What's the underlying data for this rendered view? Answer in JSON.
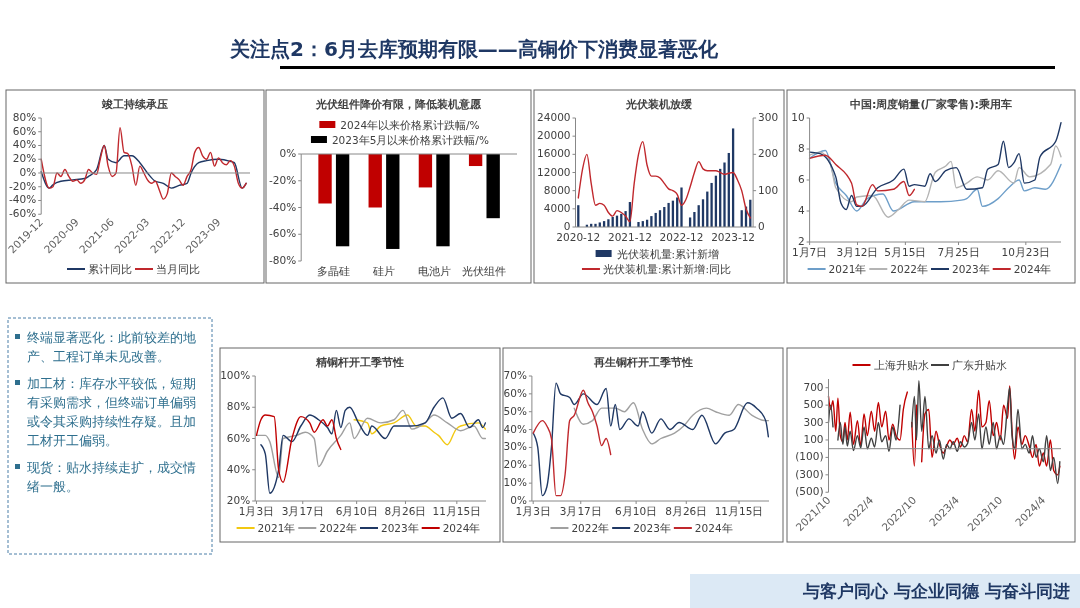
{
  "chart_data": [
    {
      "type": "line",
      "title": "竣工持续承压",
      "xlim": [
        "2019-12",
        "2024-05"
      ],
      "xticks": [
        {
          "value": "2019-12",
          "label": "2019-12"
        },
        {
          "value": "2020-09",
          "label": "2020-09"
        },
        {
          "value": "2021-06",
          "label": "2021-06"
        },
        {
          "value": "2022-03",
          "label": "2022-03"
        },
        {
          "value": "2022-12",
          "label": "2022-12"
        },
        {
          "value": "2023-09",
          "label": "2023-09"
        }
      ],
      "ylim": [
        -60,
        80
      ],
      "yticks": [
        {
          "value": -60,
          "label": "-60%"
        },
        {
          "value": -40,
          "label": "-40%"
        },
        {
          "value": -20,
          "label": "-20%"
        },
        {
          "value": 0,
          "label": "0%"
        },
        {
          "value": 20,
          "label": "20%"
        },
        {
          "value": 40,
          "label": "40%"
        },
        {
          "value": 60,
          "label": "60%"
        },
        {
          "value": 80,
          "label": "80%"
        }
      ],
      "legend": "bottom",
      "series": [
        {
          "name": "累计同比",
          "color": "#1f3864",
          "x": [
            "2019-12",
            "2020-02",
            "2020-03",
            "2020-05",
            "2020-08",
            "2020-11",
            "2020-12",
            "2021-02",
            "2021-04",
            "2021-05",
            "2021-07",
            "2021-09",
            "2021-11",
            "2022-01",
            "2022-03",
            "2022-05",
            "2022-07",
            "2022-09",
            "2022-11",
            "2023-01",
            "2023-02",
            "2023-04",
            "2023-06",
            "2023-09",
            "2023-12",
            "2024-01",
            "2024-03",
            "2024-04"
          ],
          "values": [
            2,
            -22,
            -17,
            -12,
            -10,
            -8,
            -5,
            5,
            40,
            20,
            15,
            25,
            25,
            15,
            0,
            -12,
            -15,
            -22,
            -18,
            -15,
            0,
            15,
            18,
            20,
            17,
            15,
            -22,
            -15
          ]
        },
        {
          "name": "当月同比",
          "color": "#c0282d",
          "x": [
            "2019-12",
            "2020-02",
            "2020-03",
            "2020-04",
            "2020-05",
            "2020-06",
            "2020-07",
            "2020-08",
            "2020-09",
            "2020-10",
            "2020-11",
            "2020-12",
            "2021-01",
            "2021-02",
            "2021-03",
            "2021-04",
            "2021-05",
            "2021-06",
            "2021-07",
            "2021-08",
            "2021-09",
            "2021-10",
            "2021-11",
            "2021-12",
            "2022-01",
            "2022-02",
            "2022-03",
            "2022-04",
            "2022-05",
            "2022-06",
            "2022-07",
            "2022-08",
            "2022-09",
            "2022-10",
            "2022-11",
            "2022-12",
            "2023-01",
            "2023-02",
            "2023-03",
            "2023-04",
            "2023-05",
            "2023-06",
            "2023-07",
            "2023-08",
            "2023-09",
            "2023-10",
            "2023-11",
            "2023-12",
            "2024-01",
            "2024-02",
            "2024-03",
            "2024-04"
          ],
          "values": [
            20,
            -22,
            -20,
            0,
            -5,
            5,
            -5,
            -12,
            -10,
            -15,
            -10,
            5,
            0,
            -2,
            20,
            40,
            10,
            -5,
            0,
            66,
            30,
            28,
            10,
            -18,
            10,
            0,
            -10,
            -15,
            -12,
            -25,
            -38,
            -30,
            0,
            -5,
            -10,
            -18,
            -5,
            5,
            30,
            37,
            25,
            20,
            30,
            10,
            22,
            15,
            12,
            18,
            10,
            -15,
            -22,
            -15
          ]
        }
      ]
    },
    {
      "type": "bar",
      "title": "光伏组件降价有限，降低装机意愿",
      "categories": [
        "多晶硅",
        "硅片",
        "电池片",
        "光伏组件"
      ],
      "ylim": [
        -80,
        0
      ],
      "yticks": [
        {
          "value": -80,
          "label": "-80%"
        },
        {
          "value": -60,
          "label": "-60%"
        },
        {
          "value": -40,
          "label": "-40%"
        },
        {
          "value": -20,
          "label": "-20%"
        },
        {
          "value": 0,
          "label": "0%"
        }
      ],
      "legend": "top",
      "series": [
        {
          "name": "2024年以来价格累计跌幅/%",
          "color": "#c00000",
          "values": [
            -37,
            -40,
            -25,
            -9
          ]
        },
        {
          "name": "2023年5月以来价格累计跌幅/%",
          "color": "#000000",
          "values": [
            -69,
            -71,
            -69,
            -48
          ]
        }
      ]
    },
    {
      "type": "bar",
      "title": "光伏装机放缓",
      "categories": [
        "2020-12",
        null,
        null,
        null,
        null,
        null,
        null,
        null,
        null,
        null,
        null,
        null,
        "2021-12",
        null,
        null,
        null,
        null,
        null,
        null,
        null,
        null,
        null,
        null,
        null,
        "2022-12",
        null,
        null,
        null,
        null,
        null,
        null,
        null,
        null,
        null,
        null,
        null,
        "2023-12",
        null,
        null,
        null,
        null
      ],
      "ylim": [
        0,
        24000
      ],
      "yticks": [
        0,
        4000,
        8000,
        12000,
        16000,
        20000,
        24000
      ],
      "y2lim": [
        0,
        300
      ],
      "y2ticks": [
        0,
        100,
        200,
        300
      ],
      "legend": "bottom",
      "series": [
        {
          "name": "光伏装机量:累计新增",
          "color": "#1f3864",
          "type": "bar",
          "values": [
            4800,
            null,
            500,
            700,
            700,
            1000,
            1300,
            1700,
            2200,
            2500,
            2900,
            3500,
            5500,
            null,
            1100,
            1300,
            1600,
            2400,
            3100,
            3700,
            4400,
            5300,
            5800,
            6500,
            8700,
            null,
            2100,
            3300,
            4800,
            6100,
            7800,
            9700,
            11300,
            12800,
            14200,
            16300,
            21700,
            null,
            3700,
            4500,
            6000
          ]
        },
        {
          "name": "光伏装机量:累计新增:同比",
          "color": "#c0282d",
          "type": "line",
          "axis": "y2",
          "values": [
            80,
            160,
            200,
            120,
            60,
            65,
            60,
            40,
            30,
            45,
            40,
            30,
            15,
            120,
            200,
            235,
            170,
            140,
            140,
            135,
            120,
            105,
            100,
            90,
            60,
            75,
            110,
            150,
            180,
            160,
            155,
            155,
            155,
            150,
            145,
            148,
            150,
            130,
            100,
            50,
            25
          ]
        }
      ]
    },
    {
      "type": "line",
      "title": "中国:周度销量(厂家零售):乘用车",
      "xlim": [
        "--01-07",
        "--12-09"
      ],
      "xticks": [
        {
          "value": "--01-07",
          "label": "1月7日"
        },
        {
          "value": "--03-12",
          "label": "3月12日"
        },
        {
          "value": "--05-15",
          "label": "5月15日"
        },
        {
          "value": "--07-25",
          "label": "7月25日"
        },
        {
          "value": "--10-23",
          "label": "10月23日"
        }
      ],
      "ylim": [
        2,
        10
      ],
      "yticks": [
        2,
        4,
        6,
        8,
        10
      ],
      "legend": "bottom",
      "series": [
        {
          "name": "2021年",
          "color": "#6d9ec9",
          "x": [
            "--01-07",
            "--01-28",
            "--02-11",
            "--02-25",
            "--03-11",
            "--03-25",
            "--04-15",
            "--04-29",
            "--05-27",
            "--07-01",
            "--07-29",
            "--08-05",
            "--08-19",
            "--08-26",
            "--09-16",
            "--09-30",
            "--10-14",
            "--10-21",
            "--11-04",
            "--11-18",
            "--12-09"
          ],
          "values": [
            7.4,
            7.9,
            5.8,
            5.0,
            4.0,
            4.8,
            5.1,
            4.0,
            4.6,
            4.6,
            4.7,
            4.8,
            5.4,
            4.3,
            4.8,
            5.5,
            6.0,
            5.3,
            5.5,
            5.4,
            7.0
          ]
        },
        {
          "name": "2022年",
          "color": "#b4b4b4",
          "x": [
            "--01-07",
            "--01-21",
            "--02-04",
            "--02-11",
            "--03-04",
            "--03-11",
            "--04-01",
            "--04-22",
            "--05-06",
            "--05-20",
            "--06-10",
            "--06-24",
            "--07-08",
            "--07-15",
            "--07-22",
            "--08-05",
            "--08-19",
            "--09-02",
            "--09-16",
            "--10-07",
            "--10-14",
            "--10-28",
            "--11-25",
            "--12-02",
            "--12-09"
          ],
          "values": [
            7.6,
            7.8,
            7.0,
            5.5,
            4.6,
            4.9,
            5.0,
            3.6,
            4.1,
            4.7,
            4.6,
            6.5,
            6.9,
            7.2,
            5.5,
            5.8,
            6.2,
            6.0,
            6.6,
            5.8,
            6.8,
            6.2,
            7.0,
            8.2,
            7.5
          ]
        },
        {
          "name": "2023年",
          "color": "#1f3864",
          "x": [
            "--01-07",
            "--01-21",
            "--02-11",
            "--02-18",
            "--02-25",
            "--03-04",
            "--03-11",
            "--03-18",
            "--04-08",
            "--04-29",
            "--05-13",
            "--05-20",
            "--05-27",
            "--06-10",
            "--06-17",
            "--06-24",
            "--07-08",
            "--07-22",
            "--08-05",
            "--08-26",
            "--09-02",
            "--09-16",
            "--09-23",
            "--09-30",
            "--10-07",
            "--10-14",
            "--10-21",
            "--11-04",
            "--11-11",
            "--12-02",
            "--12-09"
          ],
          "values": [
            7.8,
            7.7,
            6.2,
            4.5,
            4.1,
            5.0,
            4.3,
            4.3,
            5.5,
            6.0,
            6.7,
            5.6,
            5.7,
            5.6,
            6.4,
            5.9,
            6.6,
            6.8,
            5.4,
            5.5,
            6.7,
            7.0,
            8.5,
            6.8,
            7.1,
            7.7,
            5.8,
            6.0,
            7.5,
            8.5,
            9.7
          ]
        },
        {
          "name": "2024年",
          "color": "#c0282d",
          "x": [
            "--01-07",
            "--01-28",
            "--02-11",
            "--03-04",
            "--03-11",
            "--03-18",
            "--04-01",
            "--04-08",
            "--04-29",
            "--05-13",
            "--05-20",
            "--05-27"
          ],
          "values": [
            7.4,
            7.6,
            7.0,
            5.8,
            4.4,
            4.3,
            5.7,
            5.3,
            5.4,
            5.9,
            5.0,
            5.4
          ]
        }
      ]
    },
    {
      "type": "line",
      "title": "精铜杆开工季节性",
      "xlim": [
        "--01-01",
        "--12-31"
      ],
      "xticks": [
        {
          "value": "--01-03",
          "label": "1月3日"
        },
        {
          "value": "--03-17",
          "label": "3月17日"
        },
        {
          "value": "--06-10",
          "label": "6月10日"
        },
        {
          "value": "--08-26",
          "label": "8月26日"
        },
        {
          "value": "--11-15",
          "label": "11月15日"
        }
      ],
      "ylim": [
        20,
        100
      ],
      "yticks": [
        {
          "value": 20,
          "label": "20%"
        },
        {
          "value": 40,
          "label": "40%"
        },
        {
          "value": 60,
          "label": "60%"
        },
        {
          "value": 80,
          "label": "80%"
        },
        {
          "value": 100,
          "label": "100%"
        }
      ],
      "legend": "bottom",
      "series": [
        {
          "name": "2021年",
          "color": "#f2c811",
          "x": [
            "--06-06",
            "--06-27",
            "--07-04",
            "--07-18",
            "--08-08",
            "--08-29",
            "--09-12",
            "--09-26",
            "--10-10",
            "--10-17",
            "--10-31",
            "--11-14",
            "--11-21",
            "--12-19",
            "--12-30"
          ],
          "values": [
            72,
            70,
            63,
            68,
            70,
            75,
            68,
            68,
            64,
            62,
            56,
            66,
            68,
            70,
            66
          ]
        },
        {
          "name": "2022年",
          "color": "#a0a0a0",
          "x": [
            "--01-03",
            "--01-17",
            "--01-24",
            "--02-07",
            "--02-14",
            "--03-07",
            "--03-21",
            "--04-04",
            "--04-11",
            "--04-25",
            "--05-16",
            "--05-30",
            "--06-06",
            "--06-27",
            "--07-18",
            "--08-08",
            "--08-22",
            "--09-05",
            "--09-26",
            "--10-10",
            "--10-31",
            "--11-21",
            "--12-12",
            "--12-26",
            "--12-30"
          ],
          "values": [
            62,
            62,
            58,
            35,
            60,
            62,
            64,
            60,
            42,
            52,
            62,
            70,
            60,
            73,
            70,
            72,
            78,
            66,
            70,
            75,
            70,
            65,
            68,
            60,
            60
          ]
        },
        {
          "name": "2023年",
          "color": "#1f3864",
          "x": [
            "--01-10",
            "--01-17",
            "--01-24",
            "--02-07",
            "--02-14",
            "--02-28",
            "--03-14",
            "--03-28",
            "--04-11",
            "--04-25",
            "--05-02",
            "--05-09",
            "--05-16",
            "--05-23",
            "--05-30",
            "--06-13",
            "--06-27",
            "--07-04",
            "--07-25",
            "--08-08",
            "--09-05",
            "--09-26",
            "--10-10",
            "--10-24",
            "--11-07",
            "--11-21",
            "--12-05",
            "--12-19",
            "--12-26",
            "--12-30"
          ],
          "values": [
            56,
            50,
            25,
            40,
            62,
            58,
            68,
            75,
            72,
            67,
            63,
            78,
            67,
            78,
            80,
            70,
            62,
            68,
            60,
            68,
            68,
            70,
            80,
            86,
            73,
            76,
            67,
            72,
            67,
            70
          ]
        },
        {
          "name": "2024年",
          "color": "#c00000",
          "x": [
            "--01-03",
            "--01-10",
            "--01-17",
            "--01-31",
            "--02-07",
            "--02-14",
            "--02-28",
            "--03-14",
            "--03-28",
            "--04-04",
            "--04-18",
            "--04-25",
            "--05-02",
            "--05-09",
            "--05-16"
          ],
          "values": [
            62,
            72,
            75,
            74,
            40,
            32,
            60,
            74,
            70,
            64,
            72,
            68,
            72,
            60,
            53
          ]
        }
      ]
    },
    {
      "type": "line",
      "title": "再生铜杆开工季节性",
      "xlim": [
        "--01-01",
        "--12-31"
      ],
      "xticks": [
        {
          "value": "--01-03",
          "label": "1月3日"
        },
        {
          "value": "--03-17",
          "label": "3月17日"
        },
        {
          "value": "--06-10",
          "label": "6月10日"
        },
        {
          "value": "--08-26",
          "label": "8月26日"
        },
        {
          "value": "--11-15",
          "label": "11月15日"
        }
      ],
      "ylim": [
        0,
        70
      ],
      "yticks": [
        {
          "value": 0,
          "label": "0%"
        },
        {
          "value": 10,
          "label": "10%"
        },
        {
          "value": 20,
          "label": "20%"
        },
        {
          "value": 30,
          "label": "30%"
        },
        {
          "value": 40,
          "label": "40%"
        },
        {
          "value": 50,
          "label": "50%"
        },
        {
          "value": 60,
          "label": "60%"
        },
        {
          "value": 70,
          "label": "70%"
        }
      ],
      "legend": "bottom",
      "series": [
        {
          "name": "2022年",
          "color": "#a0a0a0",
          "x": [
            "--03-07",
            "--03-21",
            "--04-04",
            "--04-18",
            "--05-09",
            "--05-23",
            "--06-06",
            "--06-20",
            "--07-04",
            "--07-18",
            "--08-08",
            "--08-22",
            "--09-05",
            "--09-26",
            "--10-10",
            "--10-31",
            "--11-14",
            "--12-05",
            "--12-26",
            "--12-30"
          ],
          "values": [
            52,
            43,
            45,
            52,
            52,
            50,
            55,
            40,
            32,
            35,
            38,
            42,
            48,
            52,
            50,
            48,
            54,
            48,
            45,
            45
          ]
        },
        {
          "name": "2023年",
          "color": "#1f3864",
          "x": [
            "--01-03",
            "--01-10",
            "--01-17",
            "--01-24",
            "--01-31",
            "--02-07",
            "--02-14",
            "--02-28",
            "--03-07",
            "--03-21",
            "--04-11",
            "--04-25",
            "--05-02",
            "--05-09",
            "--05-16",
            "--05-30",
            "--06-13",
            "--06-20",
            "--07-04",
            "--07-18",
            "--08-01",
            "--08-15",
            "--09-05",
            "--09-19",
            "--10-10",
            "--10-24",
            "--11-07",
            "--11-28",
            "--12-12",
            "--12-26",
            "--12-30"
          ],
          "values": [
            38,
            30,
            3,
            8,
            30,
            66,
            60,
            58,
            54,
            60,
            54,
            63,
            42,
            54,
            40,
            46,
            42,
            50,
            38,
            46,
            40,
            44,
            40,
            48,
            32,
            38,
            40,
            55,
            52,
            45,
            36
          ]
        },
        {
          "name": "2024年",
          "color": "#c0282d",
          "x": [
            "--01-03",
            "--01-17",
            "--01-24",
            "--01-31",
            "--02-07",
            "--02-14",
            "--02-21",
            "--02-28",
            "--03-07",
            "--03-21",
            "--03-28",
            "--04-04",
            "--04-11",
            "--04-18",
            "--04-25",
            "--05-02"
          ],
          "values": [
            38,
            45,
            42,
            35,
            3,
            3,
            15,
            45,
            48,
            62,
            55,
            50,
            42,
            31,
            35,
            26
          ]
        }
      ]
    },
    {
      "type": "line",
      "xlim": [
        "2021-10-01",
        "2024-06-15"
      ],
      "xticks": [
        {
          "value": "2021-10-01",
          "label": "2021/10"
        },
        {
          "value": "2022-04-01",
          "label": "2022/4"
        },
        {
          "value": "2022-10-01",
          "label": "2022/10"
        },
        {
          "value": "2023-04-01",
          "label": "2023/4"
        },
        {
          "value": "2023-10-01",
          "label": "2023/10"
        },
        {
          "value": "2024-04-01",
          "label": "2024/4"
        }
      ],
      "ylim": [
        -500,
        800
      ],
      "yticks": [
        {
          "value": -500,
          "label": "(500)"
        },
        {
          "value": -300,
          "label": "(300)"
        },
        {
          "value": -100,
          "label": "(100)"
        },
        100,
        300,
        500,
        700
      ],
      "legend": "top",
      "x": [
        "2021-10-01",
        "2021-10-10",
        "2021-10-20",
        "2021-11-01",
        "2021-11-10",
        "2021-11-20",
        "2021-12-01",
        "2021-12-10",
        "2021-12-20",
        "2022-01-01",
        "2022-01-15",
        "2022-02-01",
        "2022-02-15",
        "2022-03-01",
        "2022-03-15",
        "2022-04-01",
        "2022-04-15",
        "2022-05-01",
        "2022-05-15",
        "2022-06-01",
        "2022-06-15",
        "2022-07-01",
        "2022-07-15",
        "2022-08-01",
        "2022-08-15",
        "2022-09-01",
        "2022-09-10",
        "2022-09-20",
        "2022-10-01",
        "2022-10-10",
        "2022-10-20",
        "2022-11-01",
        "2022-11-15",
        "2022-12-01",
        "2022-12-15",
        "2023-01-01",
        "2023-01-15",
        "2023-02-01",
        "2023-02-15",
        "2023-03-01",
        "2023-03-15",
        "2023-04-01",
        "2023-04-15",
        "2023-05-01",
        "2023-05-15",
        "2023-06-01",
        "2023-06-15",
        "2023-07-01",
        "2023-07-15",
        "2023-08-01",
        "2023-08-15",
        "2023-09-01",
        "2023-09-15",
        "2023-10-01",
        "2023-10-15",
        "2023-11-01",
        "2023-11-10",
        "2023-11-20",
        "2023-12-01",
        "2023-12-15",
        "2024-01-01",
        "2024-01-15",
        "2024-02-01",
        "2024-02-15",
        "2024-03-01",
        "2024-03-15",
        "2024-04-01",
        "2024-04-15",
        "2024-05-01",
        "2024-05-15",
        "2024-06-01",
        "2024-06-10"
      ],
      "series": [
        {
          "name": "上海升贴水",
          "color": "#c00000",
          "values": [
            600,
            450,
            550,
            200,
            580,
            150,
            80,
            300,
            100,
            420,
            50,
            320,
            30,
            400,
            150,
            430,
            200,
            530,
            250,
            430,
            100,
            280,
            150,
            100,
            450,
            650,
            null,
            300,
            -200,
            500,
            null,
            -150,
            400,
            450,
            -100,
            200,
            50,
            -50,
            30,
            100,
            50,
            120,
            20,
            150,
            80,
            450,
            200,
            670,
            250,
            300,
            550,
            150,
            300,
            100,
            500,
            350,
            720,
            200,
            -120,
            250,
            50,
            150,
            30,
            -100,
            50,
            -200,
            -50,
            -200,
            100,
            -250,
            -300,
            -200
          ]
        },
        {
          "name": "广东升贴水",
          "color": "#404040",
          "values": [
            300,
            500,
            250,
            null,
            100,
            300,
            50,
            250,
            30,
            200,
            -20,
            150,
            10,
            250,
            0,
            120,
            20,
            300,
            80,
            150,
            -30,
            250,
            100,
            500,
            null,
            null,
            null,
            250,
            600,
            100,
            780,
            200,
            600,
            0,
            150,
            -50,
            100,
            -120,
            50,
            0,
            80,
            -30,
            80,
            20,
            60,
            300,
            100,
            400,
            0,
            250,
            50,
            300,
            0,
            150,
            50,
            500,
            700,
            150,
            0,
            450,
            0,
            50,
            -50,
            150,
            -100,
            0,
            -150,
            150,
            -250,
            -100,
            -400,
            -150
          ]
        }
      ]
    },
    {
      "type": "other",
      "title": "关注点2：6月去库预期有限——高铜价下消费显著恶化",
      "annotations": [
        "终端显著恶化：此前较差的地产、工程订单未见改善。",
        "加工材：库存水平较低，短期有采购需求，但终端订单偏弱或令其采购持续性存疑。且加工材开工偏弱。",
        "现货：贴水持续走扩，成交情绪一般。",
        "与客户同心 与企业同德 与奋斗同进"
      ]
    }
  ]
}
